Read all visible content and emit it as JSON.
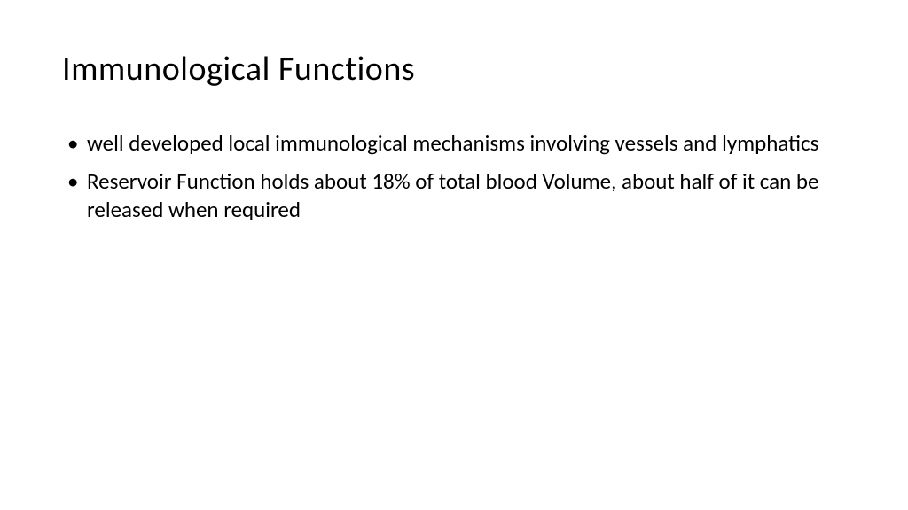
{
  "slide": {
    "title": "Immunological Functions",
    "title_fontsize": 38,
    "title_color": "#000000",
    "background_color": "#ffffff",
    "bullets": [
      "well developed local immunological mechanisms involving vessels and lymphatics",
      "Reservoir Function  holds about 18% of total blood Volume, about half of it can be released  when required"
    ],
    "bullet_fontsize": 25,
    "bullet_color": "#000000",
    "font_family": "Calibri"
  }
}
